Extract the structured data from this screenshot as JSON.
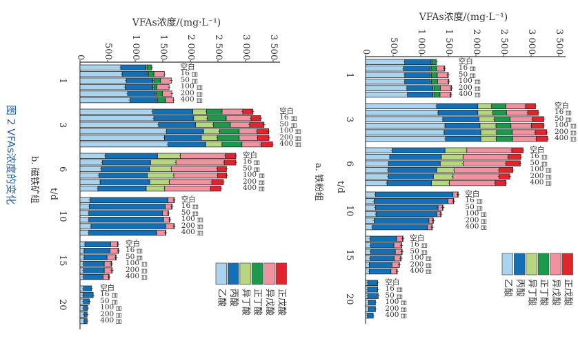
{
  "caption": "图 2 VFAs浓度的变化",
  "chart_data": [
    {
      "panel": "a",
      "type": "bar",
      "stacked": true,
      "title": "a. 铁粉组",
      "xlabel": "t/d",
      "ylabel": "VFAs浓度/(mg·L⁻¹)",
      "ylim": [
        0,
        3500
      ],
      "ticks": [
        "0",
        "500",
        "1 000",
        "1 500",
        "2 000",
        "2 500",
        "3 000",
        "3 500"
      ],
      "tick_values": [
        0,
        500,
        1000,
        1500,
        2000,
        2500,
        3000,
        3500
      ],
      "days": [
        "1",
        "3",
        "6",
        "10",
        "15",
        "20"
      ],
      "treatments": [
        {
          "num": "空白",
          "unit": ""
        },
        {
          "num": "16",
          "unit": "目"
        },
        {
          "num": "50",
          "unit": "目"
        },
        {
          "num": "100",
          "unit": "目"
        },
        {
          "num": "200",
          "unit": "目"
        },
        {
          "num": "400",
          "unit": "目"
        }
      ],
      "series_names": [
        "乙酸",
        "丙酸",
        "异丁酸",
        "正丁酸",
        "异戊酸",
        "正戊酸"
      ],
      "values": [
        [
          [
            710,
            480,
            20,
            75,
            0,
            0
          ],
          [
            690,
            480,
            20,
            95,
            140,
            10
          ],
          [
            710,
            465,
            20,
            105,
            190,
            10
          ],
          [
            710,
            465,
            20,
            110,
            195,
            10
          ],
          [
            750,
            470,
            20,
            115,
            195,
            10
          ],
          [
            760,
            460,
            20,
            110,
            190,
            10
          ]
        ],
        [
          [
            1290,
            745,
            250,
            260,
            355,
            180
          ],
          [
            1315,
            720,
            270,
            250,
            385,
            190
          ],
          [
            1400,
            655,
            280,
            285,
            405,
            205
          ],
          [
            1440,
            635,
            290,
            270,
            370,
            225
          ],
          [
            1425,
            665,
            285,
            285,
            415,
            210
          ],
          [
            1450,
            640,
            280,
            295,
            430,
            205
          ]
        ],
        [
          [
            480,
            960,
            395,
            0,
            815,
            205
          ],
          [
            440,
            935,
            395,
            0,
            815,
            230
          ],
          [
            420,
            935,
            415,
            0,
            775,
            260
          ],
          [
            410,
            885,
            310,
            0,
            815,
            250
          ],
          [
            415,
            815,
            355,
            0,
            835,
            195
          ],
          [
            390,
            805,
            325,
            0,
            830,
            195
          ]
        ],
        [
          [
            180,
            1405,
            0,
            0,
            85,
            10
          ],
          [
            155,
            1340,
            0,
            0,
            95,
            10
          ],
          [
            180,
            1135,
            0,
            0,
            80,
            10
          ],
          [
            190,
            1105,
            0,
            0,
            65,
            10
          ],
          [
            155,
            995,
            0,
            0,
            70,
            10
          ],
          [
            125,
            1000,
            0,
            0,
            75,
            10
          ]
        ],
        [
          [
            85,
            480,
            0,
            0,
            105,
            10
          ],
          [
            95,
            420,
            0,
            0,
            130,
            10
          ],
          [
            95,
            445,
            0,
            0,
            115,
            10
          ],
          [
            85,
            435,
            0,
            0,
            115,
            10
          ],
          [
            70,
            410,
            0,
            0,
            125,
            10
          ],
          [
            70,
            390,
            0,
            0,
            105,
            10
          ]
        ],
        [
          [
            40,
            180,
            0,
            0,
            0,
            0
          ],
          [
            40,
            180,
            0,
            0,
            0,
            0
          ],
          [
            40,
            190,
            0,
            0,
            0,
            0
          ],
          [
            55,
            125,
            0,
            0,
            0,
            0
          ],
          [
            55,
            125,
            0,
            0,
            0,
            0
          ],
          [
            35,
            105,
            0,
            0,
            0,
            0
          ]
        ]
      ]
    },
    {
      "panel": "b",
      "type": "bar",
      "stacked": true,
      "title": "b. 磁铁矿组",
      "xlabel": "t/d",
      "ylabel": "VFAs浓度/(mg·L⁻¹)",
      "ylim": [
        0,
        3500
      ],
      "ticks": [
        "0",
        "500",
        "1 000",
        "1 500",
        "2 000",
        "2 500",
        "3 000",
        "3 500"
      ],
      "tick_values": [
        0,
        500,
        1000,
        1500,
        2000,
        2500,
        3000,
        3500
      ],
      "days": [
        "1",
        "3",
        "6",
        "10",
        "15",
        "20"
      ],
      "treatments": [
        {
          "num": "空白",
          "unit": ""
        },
        {
          "num": "16",
          "unit": "目"
        },
        {
          "num": "50",
          "unit": "目"
        },
        {
          "num": "100",
          "unit": "目"
        },
        {
          "num": "200",
          "unit": "目"
        },
        {
          "num": "400",
          "unit": "目"
        }
      ],
      "series_names": [
        "乙酸",
        "丙酸",
        "异丁酸",
        "正丁酸",
        "异戊酸",
        "正戊酸"
      ],
      "values": [
        [
          [
            740,
            455,
            20,
            85,
            0,
            0
          ],
          [
            765,
            460,
            20,
            95,
            190,
            0
          ],
          [
            840,
            480,
            20,
            120,
            195,
            0
          ],
          [
            820,
            500,
            20,
            55,
            220,
            0
          ],
          [
            865,
            500,
            20,
            110,
            170,
            0
          ],
          [
            905,
            480,
            20,
            145,
            145,
            0
          ]
        ],
        [
          [
            1320,
            725,
            250,
            280,
            375,
            185
          ],
          [
            1340,
            720,
            250,
            340,
            450,
            175
          ],
          [
            1425,
            670,
            325,
            305,
            350,
            260
          ],
          [
            1570,
            670,
            290,
            355,
            325,
            210
          ],
          [
            1530,
            670,
            290,
            395,
            335,
            205
          ],
          [
            1595,
            685,
            295,
            360,
            345,
            210
          ]
        ],
        [
          [
            460,
            945,
            415,
            0,
            815,
            190
          ],
          [
            405,
            875,
            460,
            0,
            875,
            210
          ],
          [
            385,
            875,
            395,
            0,
            835,
            165
          ],
          [
            345,
            875,
            480,
            0,
            795,
            165
          ],
          [
            365,
            900,
            355,
            0,
            770,
            210
          ],
          [
            325,
            875,
            335,
            0,
            835,
            185
          ]
        ],
        [
          [
            180,
            1415,
            0,
            0,
            105,
            10
          ],
          [
            170,
            1375,
            0,
            0,
            115,
            10
          ],
          [
            160,
            1335,
            0,
            0,
            100,
            10
          ],
          [
            160,
            1355,
            0,
            0,
            105,
            10
          ],
          [
            200,
            1355,
            0,
            0,
            145,
            10
          ],
          [
            160,
            1230,
            0,
            0,
            155,
            10
          ]
        ],
        [
          [
            90,
            465,
            0,
            0,
            125,
            10
          ],
          [
            75,
            470,
            0,
            0,
            145,
            10
          ],
          [
            75,
            415,
            0,
            0,
            155,
            10
          ],
          [
            65,
            375,
            0,
            0,
            125,
            10
          ],
          [
            65,
            375,
            0,
            0,
            135,
            10
          ],
          [
            65,
            355,
            0,
            0,
            100,
            10
          ]
        ],
        [
          [
            65,
            145,
            0,
            0,
            0,
            0
          ],
          [
            55,
            185,
            0,
            0,
            0,
            0
          ],
          [
            65,
            105,
            0,
            0,
            0,
            0
          ],
          [
            65,
            75,
            0,
            0,
            0,
            0
          ],
          [
            75,
            55,
            0,
            0,
            0,
            0
          ],
          [
            75,
            55,
            0,
            0,
            0,
            0
          ]
        ]
      ]
    }
  ],
  "legend": [
    {
      "name": "乙酸",
      "color": "#a9d3ef"
    },
    {
      "name": "丙酸",
      "color": "#1470b6"
    },
    {
      "name": "异丁酸",
      "color": "#b6d77f"
    },
    {
      "name": "正丁酸",
      "color": "#1c9a4b"
    },
    {
      "name": "异戊酸",
      "color": "#f0929f"
    },
    {
      "name": "正戊酸",
      "color": "#e2252c"
    }
  ]
}
